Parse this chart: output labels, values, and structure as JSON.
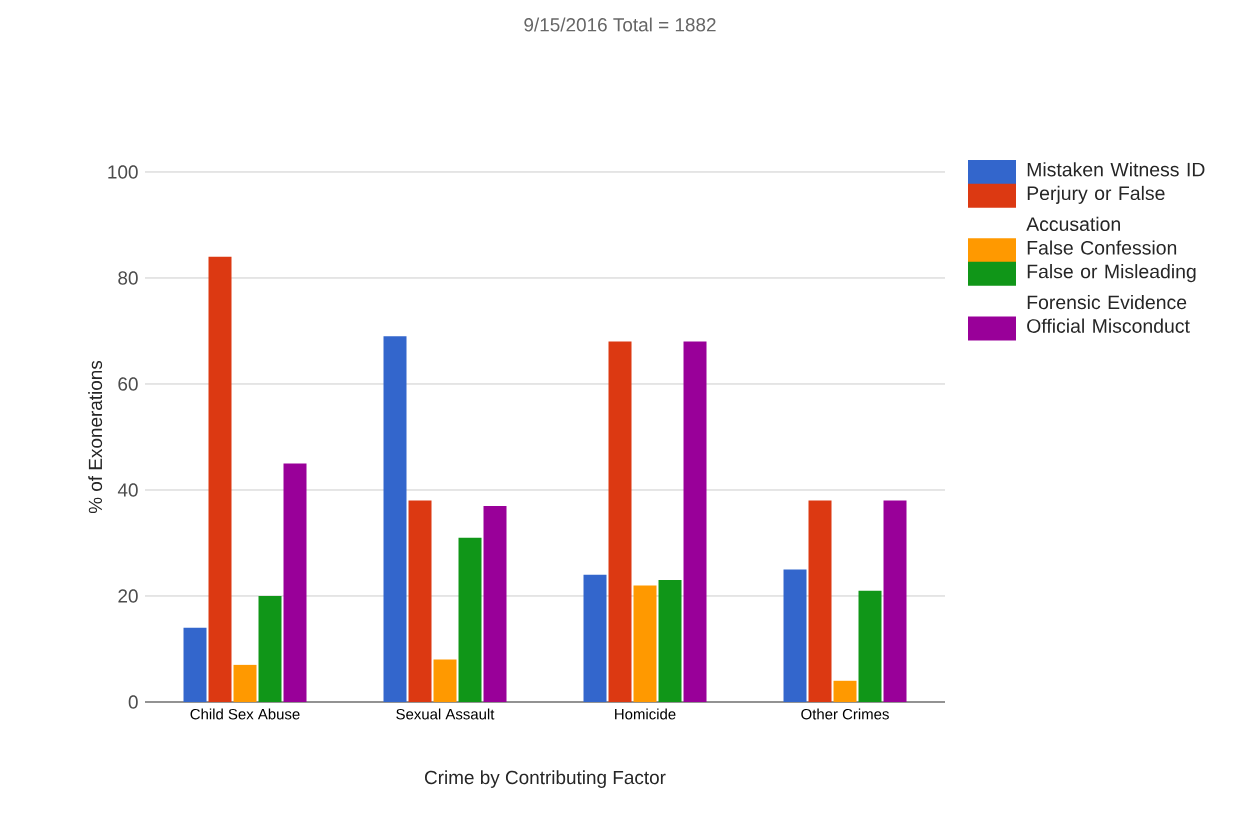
{
  "chart_data": {
    "type": "bar",
    "title": "9/15/2016 Total = 1882",
    "xlabel": "Crime by Contributing Factor",
    "ylabel": "% of Exonerations",
    "categories": [
      "Child Sex Abuse",
      "Sexual Assault",
      "Homicide",
      "Other Crimes"
    ],
    "series": [
      {
        "name": "Mistaken Witness ID",
        "color": "#3366cc",
        "values": [
          14,
          69,
          24,
          25
        ]
      },
      {
        "name": "Perjury or False Accusation",
        "color": "#dc3912",
        "values": [
          84,
          38,
          68,
          38
        ]
      },
      {
        "name": "False Confession",
        "color": "#ff9900",
        "values": [
          7,
          8,
          22,
          4
        ]
      },
      {
        "name": "False or Misleading Forensic Evidence",
        "color": "#109618",
        "values": [
          20,
          31,
          23,
          21
        ]
      },
      {
        "name": "Official Misconduct",
        "color": "#990099",
        "values": [
          45,
          37,
          68,
          38
        ]
      }
    ],
    "ylim": [
      0,
      100
    ],
    "yticks": [
      0,
      20,
      40,
      60,
      80,
      100
    ],
    "grid": "y",
    "legend": "right"
  }
}
